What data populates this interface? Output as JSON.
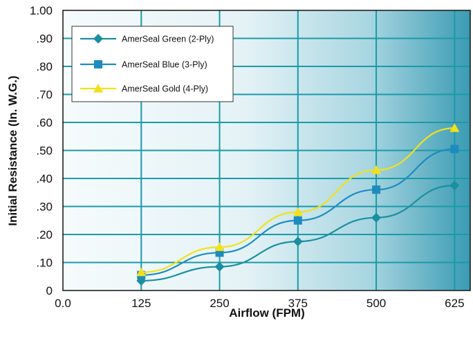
{
  "chart_data": {
    "type": "line",
    "title": "",
    "xlabel": "Airflow (FPM)",
    "ylabel": "Initial Resistance (In. W.G.)",
    "x": [
      125,
      250,
      375,
      500,
      625
    ],
    "x_ticks": [
      0,
      125,
      250,
      375,
      500,
      625
    ],
    "x_tick_labels": [
      "0.0",
      "125",
      "250",
      "375",
      "500",
      "625"
    ],
    "y_ticks": [
      0,
      0.1,
      0.2,
      0.3,
      0.4,
      0.5,
      0.6,
      0.7,
      0.8,
      0.9,
      1.0
    ],
    "y_tick_labels": [
      "0",
      ".10",
      ".20",
      ".30",
      ".40",
      ".50",
      ".60",
      ".70",
      ".80",
      ".90",
      "1.00"
    ],
    "xlim": [
      0,
      650
    ],
    "ylim": [
      0,
      1.0
    ],
    "grid": true,
    "legend_position": "top-left",
    "series": [
      {
        "name": "AmerSeal Green (2-Ply)",
        "color": "#1a8fa0",
        "marker": "diamond",
        "values": [
          0.035,
          0.085,
          0.175,
          0.26,
          0.375
        ]
      },
      {
        "name": "AmerSeal Blue (3-Ply)",
        "color": "#1e8bbf",
        "marker": "square",
        "values": [
          0.055,
          0.135,
          0.25,
          0.36,
          0.505
        ]
      },
      {
        "name": "AmerSeal Gold (4-Ply)",
        "color": "#f2e11a",
        "marker": "triangle",
        "values": [
          0.065,
          0.155,
          0.28,
          0.43,
          0.58
        ]
      }
    ]
  },
  "colors": {
    "plot_background_left": "#f4f9fb",
    "plot_background_right": "#2a8ea6",
    "grid": "#1a9aa8"
  }
}
